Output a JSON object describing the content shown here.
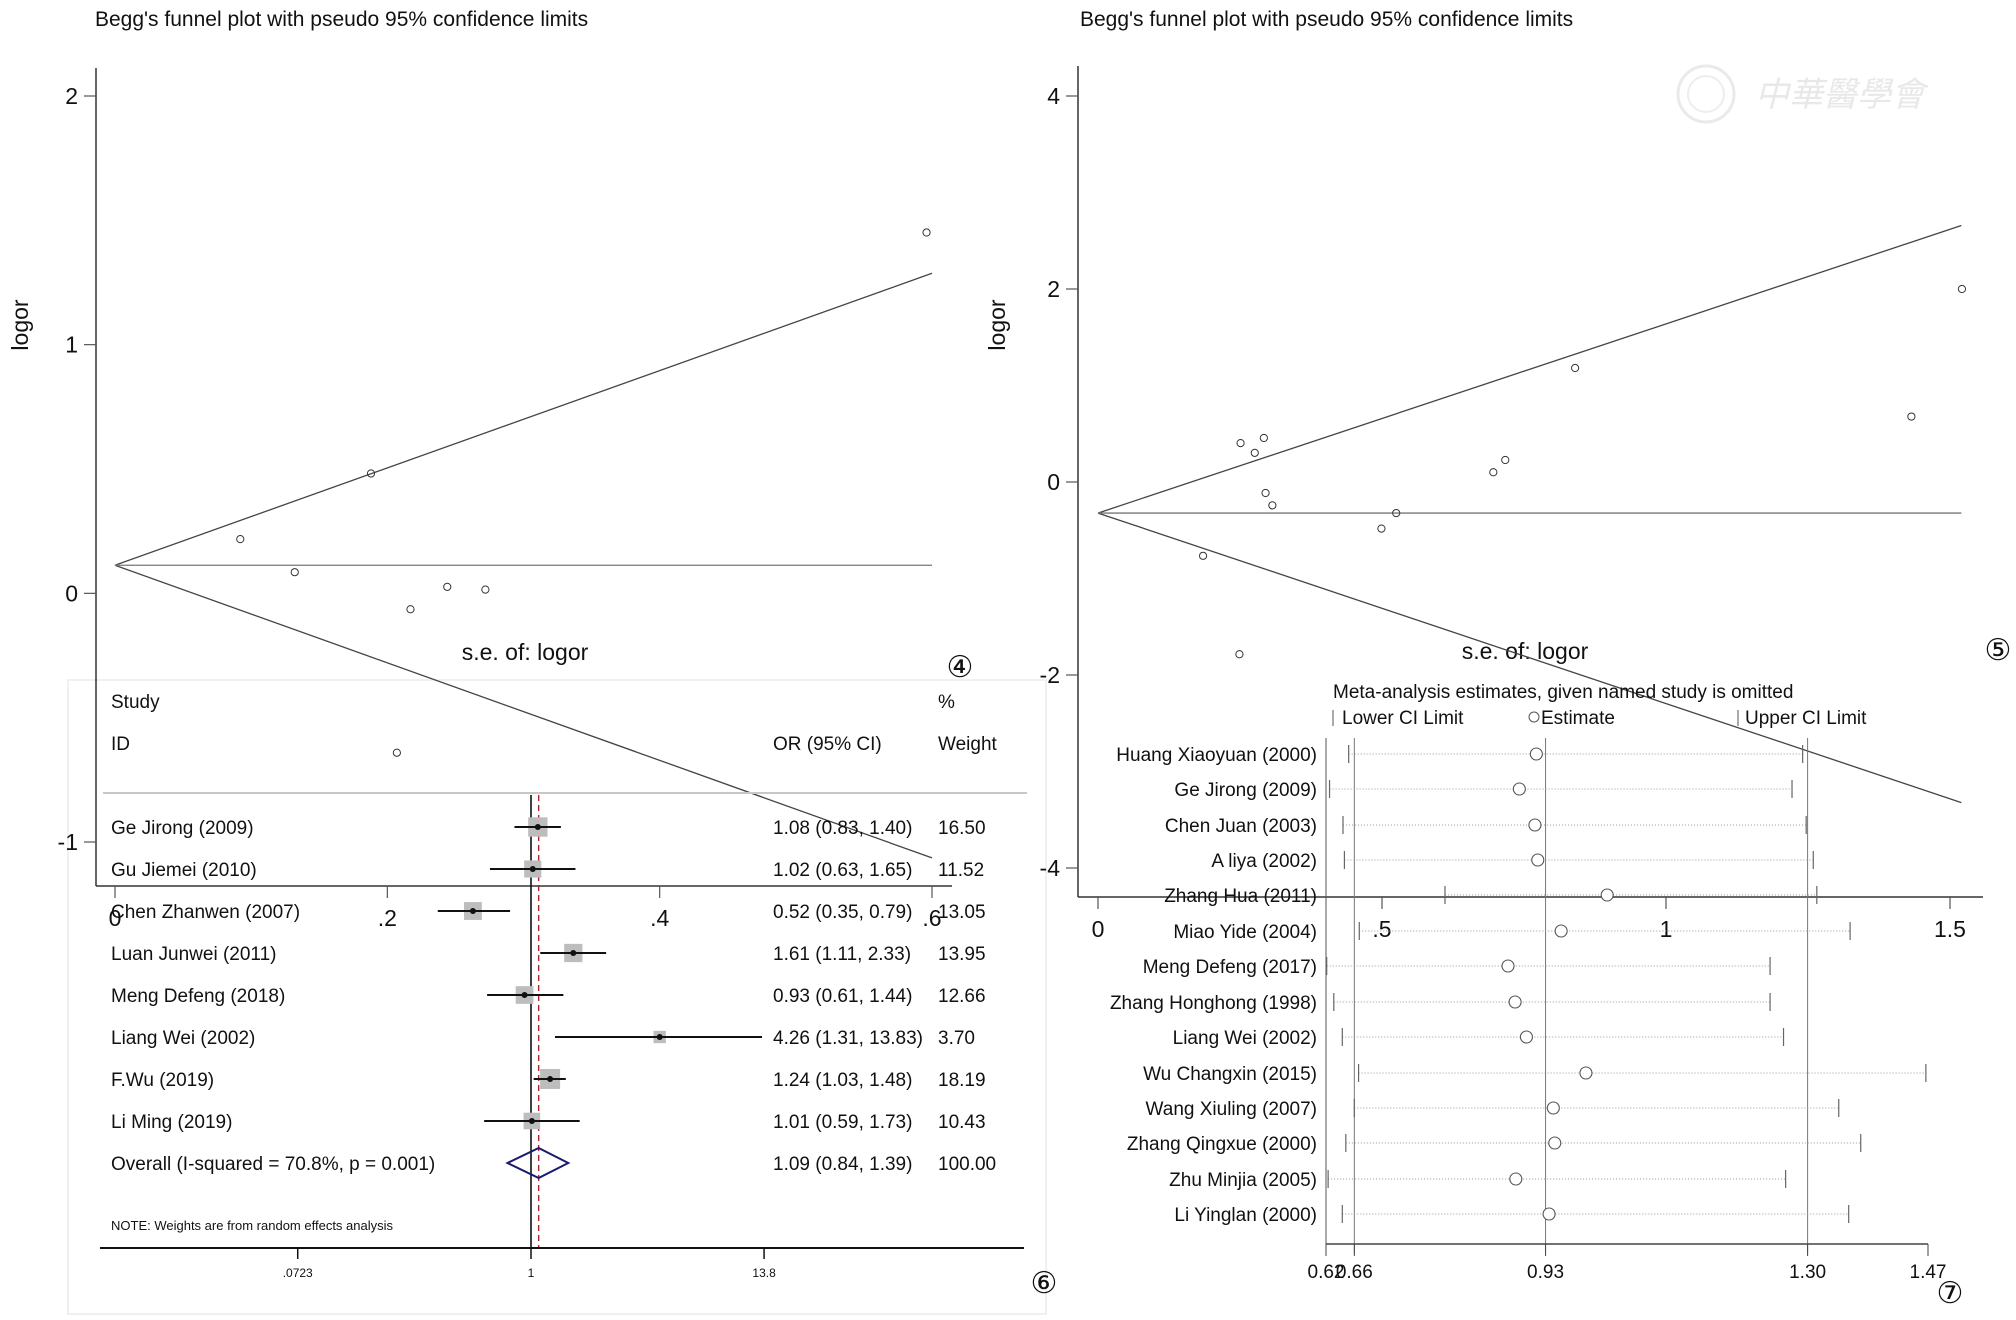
{
  "panels": {
    "p4": {
      "label": "④"
    },
    "p5": {
      "label": "⑤"
    },
    "p6": {
      "label": "⑥"
    },
    "p7": {
      "label": "⑦"
    }
  },
  "watermark": {
    "text": "中華醫學會",
    "icon": "association-seal-icon"
  },
  "chart_data": [
    {
      "id": "funnel4",
      "type": "scatter",
      "title": "Begg's funnel plot with pseudo 95% confidence limits",
      "xlabel": "s.e. of: logor",
      "ylabel": "logor",
      "xlim": [
        0,
        0.6
      ],
      "ylim": [
        -1,
        2
      ],
      "xticks": [
        0,
        0.2,
        0.4,
        0.6
      ],
      "xtick_labels": [
        "0",
        ".2",
        ".4",
        ".6"
      ],
      "yticks": [
        -1,
        0,
        1,
        2
      ],
      "ytick_labels": [
        "-1",
        "0",
        "1",
        "2"
      ],
      "pooled_estimate": 0.113,
      "funnel_limits_at_max_se": {
        "se": 0.6,
        "upper": 1.287,
        "lower": -1.064
      },
      "points": [
        {
          "x": 0.092,
          "y": 0.218
        },
        {
          "x": 0.132,
          "y": 0.085
        },
        {
          "x": 0.188,
          "y": 0.482
        },
        {
          "x": 0.207,
          "y": -0.641
        },
        {
          "x": 0.217,
          "y": -0.064
        },
        {
          "x": 0.244,
          "y": 0.026
        },
        {
          "x": 0.272,
          "y": 0.015
        },
        {
          "x": 0.596,
          "y": 1.451
        }
      ]
    },
    {
      "id": "funnel5",
      "type": "scatter",
      "title": "Begg's funnel plot with pseudo 95% confidence limits",
      "xlabel": "s.e. of: logor",
      "ylabel": "logor",
      "xlim": [
        0,
        1.52
      ],
      "ylim": [
        -4,
        4
      ],
      "xticks": [
        0,
        0.5,
        1,
        1.5
      ],
      "xtick_labels": [
        "0",
        ".5",
        "1",
        "1.5"
      ],
      "yticks": [
        -4,
        -2,
        0,
        2,
        4
      ],
      "ytick_labels": [
        "-4",
        "-2",
        "0",
        "2",
        "4"
      ],
      "pooled_estimate": -0.322,
      "funnel_limits_at_max_se": {
        "se": 1.52,
        "upper": 2.658,
        "lower": -3.322
      },
      "points": [
        {
          "x": 0.185,
          "y": -0.765
        },
        {
          "x": 0.249,
          "y": -1.785
        },
        {
          "x": 0.251,
          "y": 0.403
        },
        {
          "x": 0.276,
          "y": 0.302
        },
        {
          "x": 0.292,
          "y": 0.456
        },
        {
          "x": 0.295,
          "y": -0.114
        },
        {
          "x": 0.307,
          "y": -0.242
        },
        {
          "x": 0.499,
          "y": -0.483
        },
        {
          "x": 0.525,
          "y": -0.322
        },
        {
          "x": 0.696,
          "y": 0.101
        },
        {
          "x": 0.717,
          "y": 0.228
        },
        {
          "x": 0.84,
          "y": 1.181
        },
        {
          "x": 1.432,
          "y": 0.678
        },
        {
          "x": 1.521,
          "y": 2.0
        }
      ]
    },
    {
      "id": "forest6",
      "type": "forest",
      "header": {
        "study": "Study",
        "id": "ID",
        "ci": "OR (95% CI)",
        "pct": "%",
        "weight": "Weight"
      },
      "xscale": "log",
      "xticks": [
        0.0723,
        1,
        13.8
      ],
      "xtick_labels": [
        ".0723",
        "1",
        "13.8"
      ],
      "note": "NOTE: Weights are from random effects analysis",
      "studies": [
        {
          "name": "Ge Jirong (2009)",
          "or": 1.08,
          "lo": 0.83,
          "hi": 1.4,
          "ci_text": "1.08 (0.83, 1.40)",
          "weight": "16.50"
        },
        {
          "name": "Gu Jiemei (2010)",
          "or": 1.02,
          "lo": 0.63,
          "hi": 1.65,
          "ci_text": "1.02 (0.63, 1.65)",
          "weight": "11.52"
        },
        {
          "name": "Chen Zhanwen (2007)",
          "or": 0.52,
          "lo": 0.35,
          "hi": 0.79,
          "ci_text": "0.52 (0.35, 0.79)",
          "weight": "13.05"
        },
        {
          "name": "Luan Junwei (2011)",
          "or": 1.61,
          "lo": 1.11,
          "hi": 2.33,
          "ci_text": "1.61 (1.11, 2.33)",
          "weight": "13.95"
        },
        {
          "name": "Meng Defeng (2018)",
          "or": 0.93,
          "lo": 0.61,
          "hi": 1.44,
          "ci_text": "0.93 (0.61, 1.44)",
          "weight": "12.66"
        },
        {
          "name": "Liang Wei (2002)",
          "or": 4.26,
          "lo": 1.31,
          "hi": 13.83,
          "ci_text": "4.26 (1.31, 13.83)",
          "weight": "3.70"
        },
        {
          "name": "F.Wu (2019)",
          "or": 1.24,
          "lo": 1.03,
          "hi": 1.48,
          "ci_text": "1.24 (1.03, 1.48)",
          "weight": "18.19"
        },
        {
          "name": "Li Ming (2019)",
          "or": 1.01,
          "lo": 0.59,
          "hi": 1.73,
          "ci_text": "1.01 (0.59, 1.73)",
          "weight": "10.43"
        }
      ],
      "overall": {
        "name": "Overall  (I-squared = 70.8%, p = 0.001)",
        "or": 1.09,
        "lo": 0.84,
        "hi": 1.39,
        "ci_text": "1.09 (0.84, 1.39)",
        "weight": "100.00"
      },
      "colors": {
        "diamond": "#1a1a6e",
        "pooled_line": "#b02030",
        "box": "#bdbdbd"
      }
    },
    {
      "id": "sensitivity7",
      "type": "sensitivity",
      "title": "Meta-analysis estimates, given named study is omitted",
      "legend": {
        "lower": "Lower CI Limit",
        "estimate": "Estimate",
        "upper": "Upper CI Limit"
      },
      "xlim": [
        0.62,
        1.47
      ],
      "xticks": [
        0.62,
        0.66,
        0.93,
        1.3,
        1.47
      ],
      "xtick_labels": [
        "0.62",
        "0.66",
        "0.93",
        "1.30",
        "1.47"
      ],
      "reference_lines": [
        0.66,
        0.93,
        1.3
      ],
      "rows": [
        {
          "name": "Huang Xiaoyuan (2000)",
          "lo": 0.652,
          "est": 0.917,
          "hi": 1.293
        },
        {
          "name": "Ge Jirong (2009)",
          "lo": 0.625,
          "est": 0.893,
          "hi": 1.278
        },
        {
          "name": "Chen Juan (2003)",
          "lo": 0.644,
          "est": 0.915,
          "hi": 1.298
        },
        {
          "name": "A liya (2002)",
          "lo": 0.646,
          "est": 0.919,
          "hi": 1.308
        },
        {
          "name": "Zhang Hua (2011)",
          "lo": 0.788,
          "est": 1.017,
          "hi": 1.313
        },
        {
          "name": "Miao Yide (2004)",
          "lo": 0.667,
          "est": 0.952,
          "hi": 1.36
        },
        {
          "name": "Meng Defeng (2017)",
          "lo": 0.621,
          "est": 0.877,
          "hi": 1.247
        },
        {
          "name": "Zhang Honghong  (1998)",
          "lo": 0.631,
          "est": 0.887,
          "hi": 1.247
        },
        {
          "name": "Liang Wei (2002)",
          "lo": 0.643,
          "est": 0.903,
          "hi": 1.266
        },
        {
          "name": "Wu Changxin (2015)",
          "lo": 0.666,
          "est": 0.987,
          "hi": 1.467
        },
        {
          "name": "Wang Xiuling (2007)",
          "lo": 0.66,
          "est": 0.941,
          "hi": 1.344
        },
        {
          "name": "Zhang Qingxue (2000)",
          "lo": 0.648,
          "est": 0.943,
          "hi": 1.375
        },
        {
          "name": "Zhu Minjia (2005)",
          "lo": 0.623,
          "est": 0.888,
          "hi": 1.269
        },
        {
          "name": "Li Yinglan (2000)",
          "lo": 0.643,
          "est": 0.935,
          "hi": 1.358
        }
      ]
    }
  ]
}
